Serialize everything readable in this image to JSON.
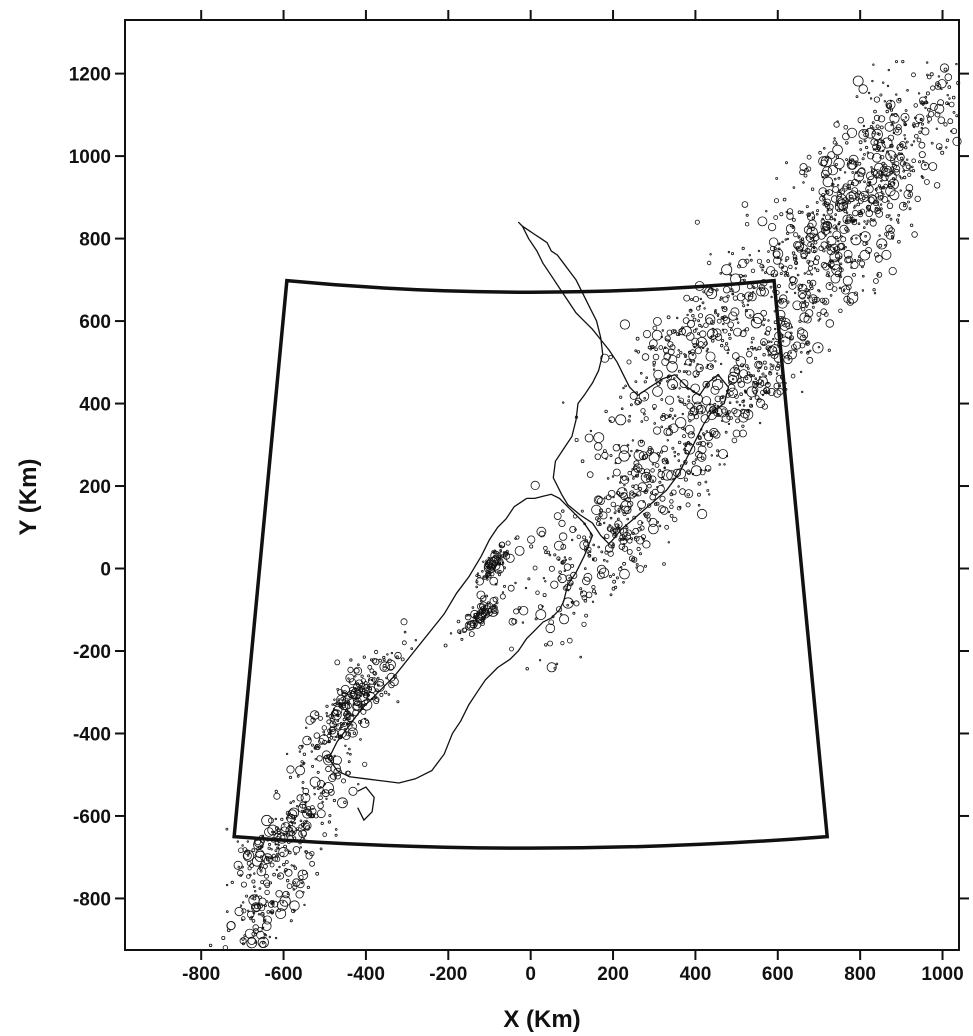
{
  "chart_data": {
    "type": "scatter",
    "title": "",
    "xlabel": "X  (Km)",
    "ylabel": "Y (Km)",
    "xlim": [
      -985,
      1040
    ],
    "ylim": [
      -925,
      1330
    ],
    "xticks": [
      -800,
      -600,
      -400,
      -200,
      0,
      200,
      400,
      600,
      800,
      1000
    ],
    "yticks": [
      -800,
      -600,
      -400,
      -200,
      0,
      200,
      400,
      600,
      800,
      1000,
      1200
    ],
    "xtick_labels": [
      "-800",
      "-600",
      "-400",
      "-200",
      "0",
      "200",
      "400",
      "600",
      "800",
      "1000"
    ],
    "ytick_labels": [
      "-800",
      "-600",
      "-400",
      "-200",
      "0",
      "200",
      "400",
      "600",
      "800",
      "1000",
      "1200"
    ],
    "grid": false,
    "legend": "none",
    "colors": {
      "ink": "#111111",
      "background": "#ffffff"
    },
    "region_boundary": {
      "name": "",
      "x": [
        -592,
        591,
        720,
        -720,
        -592
      ],
      "y": [
        698,
        698,
        -650,
        -650,
        698
      ],
      "note_curvature": "top and bottom edges bow downward by about 28 data units at centre"
    },
    "coastline_north_island": {
      "x": [
        -30,
        -20,
        -5,
        15,
        30,
        50,
        70,
        90,
        110,
        130,
        150,
        170,
        190,
        210,
        225,
        240,
        260,
        290,
        320,
        350,
        380,
        410,
        430,
        455,
        480,
        470,
        440,
        420,
        400,
        380,
        360,
        330,
        290,
        250,
        220,
        200,
        190,
        170,
        150,
        120,
        90,
        75,
        55,
        60,
        80,
        100,
        110,
        115,
        130,
        150,
        165,
        175,
        170,
        160,
        140,
        120,
        110,
        95,
        80,
        65,
        50,
        40,
        25,
        10,
        -5,
        -20,
        -30
      ],
      "y": [
        840,
        830,
        800,
        770,
        740,
        710,
        680,
        650,
        620,
        600,
        580,
        555,
        530,
        500,
        470,
        440,
        420,
        440,
        460,
        470,
        440,
        420,
        450,
        470,
        440,
        400,
        380,
        350,
        310,
        270,
        230,
        190,
        155,
        120,
        95,
        70,
        60,
        80,
        110,
        130,
        155,
        180,
        220,
        260,
        290,
        320,
        360,
        400,
        420,
        450,
        480,
        520,
        560,
        600,
        640,
        680,
        700,
        720,
        740,
        760,
        770,
        790,
        800,
        810,
        820,
        830,
        840
      ]
    },
    "coastline_south_island": {
      "x": [
        -10,
        -40,
        -60,
        -80,
        -100,
        -120,
        -150,
        -180,
        -210,
        -250,
        -290,
        -330,
        -370,
        -410,
        -440,
        -470,
        -490,
        -470,
        -440,
        -400,
        -360,
        -320,
        -280,
        -240,
        -210,
        -190,
        -170,
        -150,
        -130,
        -110,
        -80,
        -50,
        -30,
        -10,
        10,
        30,
        50,
        70,
        80,
        90,
        110,
        130,
        150,
        130,
        110,
        90,
        70,
        50,
        30,
        10,
        -10
      ],
      "y": [
        170,
        150,
        120,
        100,
        70,
        30,
        -20,
        -60,
        -110,
        -160,
        -210,
        -260,
        -300,
        -340,
        -380,
        -420,
        -460,
        -490,
        -505,
        -510,
        -515,
        -520,
        -510,
        -490,
        -450,
        -400,
        -370,
        -330,
        -300,
        -270,
        -240,
        -220,
        -200,
        -170,
        -150,
        -130,
        -120,
        -100,
        -80,
        -40,
        -10,
        30,
        80,
        110,
        130,
        150,
        170,
        180,
        175,
        170,
        170
      ]
    },
    "coastline_stewart_island": {
      "x": [
        -420,
        -400,
        -380,
        -385,
        -405,
        -420
      ],
      "y": [
        -540,
        -530,
        -555,
        -590,
        -610,
        -580
      ]
    },
    "seismicity_clusters": {
      "x": [
        -90,
        -120,
        -470,
        -420,
        -620,
        -650,
        -560,
        400,
        550,
        820,
        720,
        860,
        700,
        170,
        250,
        330
      ],
      "y": [
        10,
        -110,
        -380,
        -300,
        -680,
        -850,
        -600,
        560,
        450,
        930,
        720,
        1060,
        840,
        30,
        150,
        300
      ],
      "count": [
        90,
        90,
        160,
        120,
        140,
        120,
        110,
        260,
        200,
        300,
        220,
        140,
        200,
        160,
        180,
        160
      ],
      "spread": [
        25,
        25,
        60,
        60,
        70,
        60,
        70,
        120,
        80,
        120,
        120,
        120,
        140,
        120,
        120,
        120
      ],
      "rotation_deg": 48,
      "aspect": 2.2
    }
  }
}
